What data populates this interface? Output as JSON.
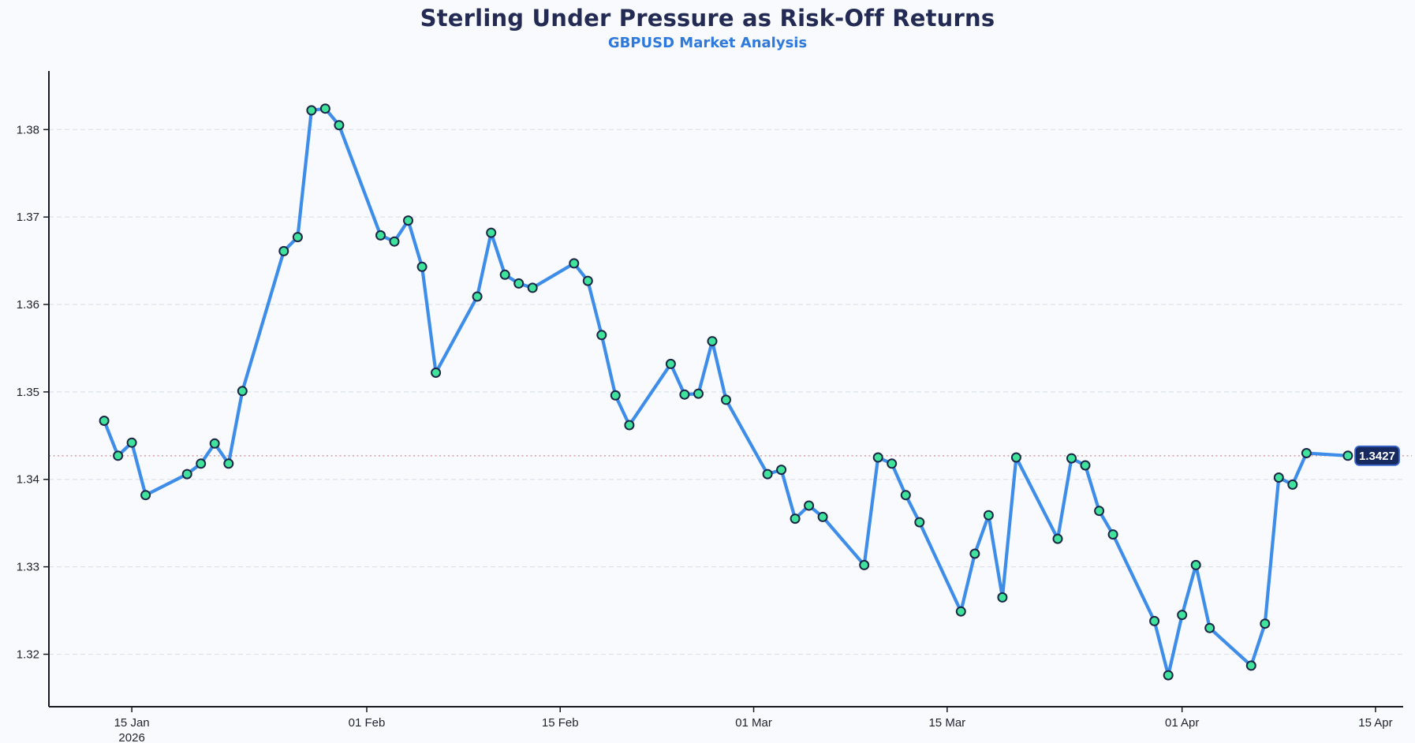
{
  "page": {
    "background": "#f8fafd"
  },
  "header": {
    "title": "Sterling Under Pressure as Risk-Off Returns",
    "subtitle": "GBPUSD Market Analysis",
    "title_color": "#232a54",
    "subtitle_color": "#2e79dc"
  },
  "chart_data": {
    "type": "line",
    "title": "Sterling Under Pressure as Risk-Off Returns",
    "subtitle": "GBPUSD Market Analysis",
    "series": [
      {
        "name": "GBPUSD",
        "x": [
          "2026-01-13",
          "2026-01-14",
          "2026-01-15",
          "2026-01-16",
          "2026-01-19",
          "2026-01-20",
          "2026-01-21",
          "2026-01-22",
          "2026-01-23",
          "2026-01-26",
          "2026-01-27",
          "2026-01-28",
          "2026-01-29",
          "2026-01-30",
          "2026-02-02",
          "2026-02-03",
          "2026-02-04",
          "2026-02-05",
          "2026-02-06",
          "2026-02-09",
          "2026-02-10",
          "2026-02-11",
          "2026-02-12",
          "2026-02-13",
          "2026-02-16",
          "2026-02-17",
          "2026-02-18",
          "2026-02-19",
          "2026-02-20",
          "2026-02-23",
          "2026-02-24",
          "2026-02-25",
          "2026-02-26",
          "2026-02-27",
          "2026-03-02",
          "2026-03-03",
          "2026-03-04",
          "2026-03-05",
          "2026-03-06",
          "2026-03-09",
          "2026-03-10",
          "2026-03-11",
          "2026-03-12",
          "2026-03-13",
          "2026-03-16",
          "2026-03-17",
          "2026-03-18",
          "2026-03-19",
          "2026-03-20",
          "2026-03-23",
          "2026-03-24",
          "2026-03-25",
          "2026-03-26",
          "2026-03-27",
          "2026-03-30",
          "2026-03-31",
          "2026-04-01",
          "2026-04-02",
          "2026-04-03",
          "2026-04-06",
          "2026-04-07",
          "2026-04-08",
          "2026-04-09",
          "2026-04-10",
          "2026-04-13"
        ],
        "values": [
          1.3467,
          1.3427,
          1.3442,
          1.3382,
          1.3406,
          1.3418,
          1.3441,
          1.3418,
          1.3501,
          1.3661,
          1.3677,
          1.3822,
          1.3824,
          1.3805,
          1.3679,
          1.3672,
          1.3696,
          1.3643,
          1.3522,
          1.3609,
          1.3682,
          1.3634,
          1.3624,
          1.3619,
          1.3647,
          1.3627,
          1.3565,
          1.3496,
          1.3462,
          1.3532,
          1.3497,
          1.3498,
          1.3558,
          1.3491,
          1.3406,
          1.3411,
          1.3355,
          1.337,
          1.3357,
          1.3302,
          1.3425,
          1.3418,
          1.3382,
          1.3351,
          1.3249,
          1.3315,
          1.3359,
          1.3265,
          1.3425,
          1.3332,
          1.3424,
          1.3416,
          1.3364,
          1.3337,
          1.3238,
          1.3176,
          1.3245,
          1.3302,
          1.323,
          1.3187,
          1.3235,
          1.3402,
          1.3394,
          1.343,
          1.3427
        ]
      }
    ],
    "xlabel": "",
    "ylabel": "",
    "xlim": [
      "2026-01-09",
      "2026-04-17"
    ],
    "ylim": [
      1.314,
      1.3867
    ],
    "x_ticks": [
      {
        "date": "2026-01-15",
        "label": "15 Jan",
        "sublabel": "2026"
      },
      {
        "date": "2026-02-01",
        "label": "01 Feb"
      },
      {
        "date": "2026-02-15",
        "label": "15 Feb"
      },
      {
        "date": "2026-03-01",
        "label": "01 Mar"
      },
      {
        "date": "2026-03-15",
        "label": "15 Mar"
      },
      {
        "date": "2026-04-01",
        "label": "01 Apr"
      },
      {
        "date": "2026-04-15",
        "label": "15 Apr"
      }
    ],
    "y_ticks": [
      {
        "value": 1.38,
        "label": "1.38"
      },
      {
        "value": 1.37,
        "label": "1.37"
      },
      {
        "value": 1.36,
        "label": "1.36"
      },
      {
        "value": 1.35,
        "label": "1.35"
      },
      {
        "value": 1.34,
        "label": "1.34"
      },
      {
        "value": 1.33,
        "label": "1.33"
      },
      {
        "value": 1.32,
        "label": "1.32"
      }
    ],
    "grid": "horizontal dashed, no vertical gridlines",
    "legend_position": "none",
    "last_value": 1.3427,
    "last_value_label": "1.3427",
    "colors": {
      "line": "#3E8EE9",
      "marker_fill": "#3FE39B",
      "marker_border": "#1B2646",
      "grid": "#DDE2EB",
      "last_value_line": "#D9A8A8",
      "badge_fill": "#162A60",
      "badge_border": "#3A66CC",
      "badge_text": "#FFFFFF",
      "axis": "#161A23",
      "tick_label": "#20242E"
    }
  }
}
